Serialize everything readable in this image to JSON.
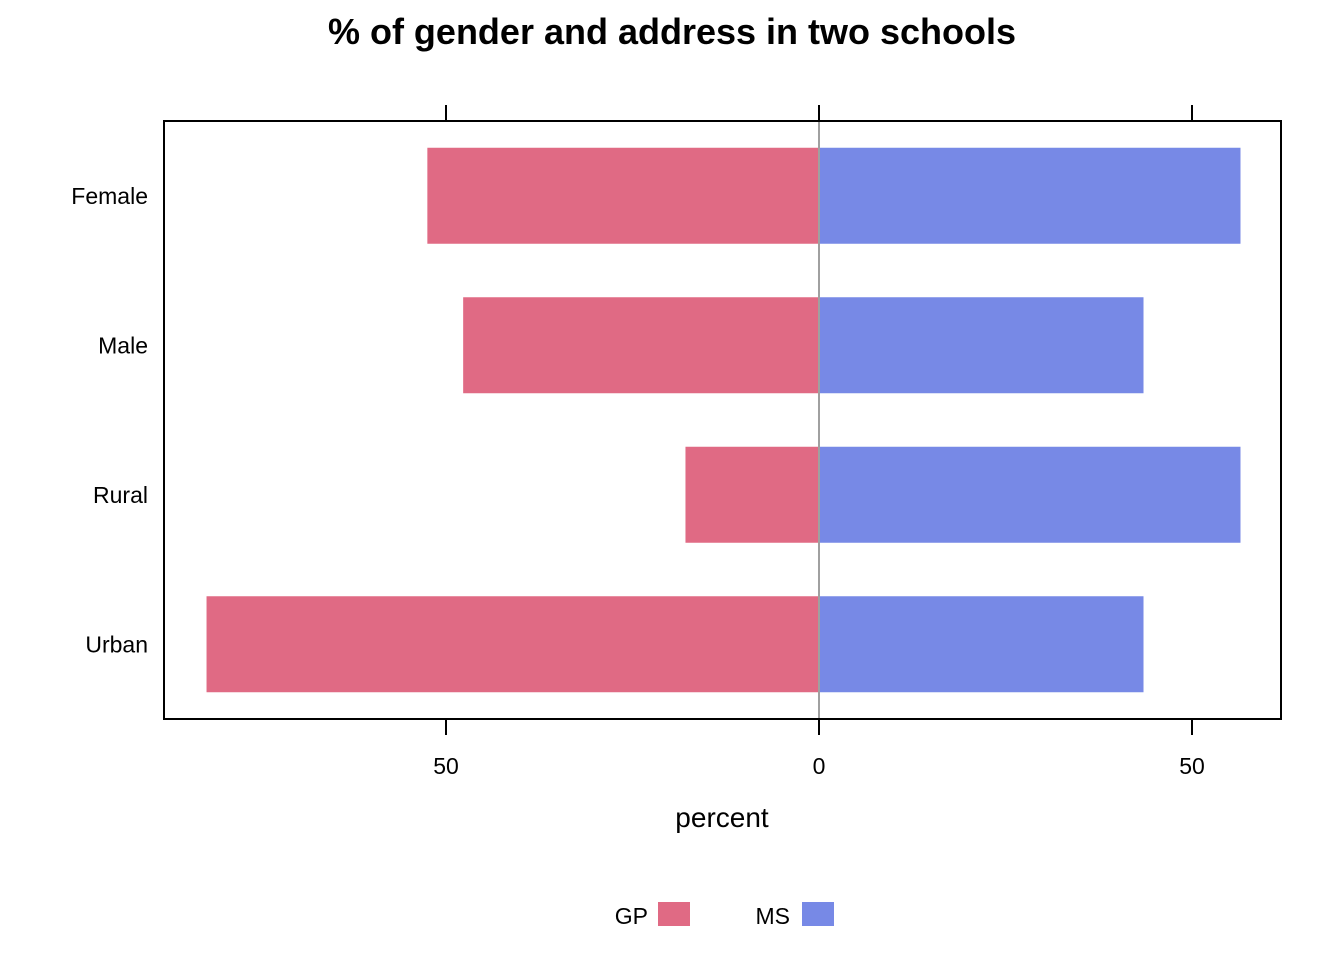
{
  "chart_data": {
    "type": "bar",
    "orientation": "horizontal",
    "diverging": true,
    "title": "% of gender and address in two schools",
    "xlabel": "percent",
    "ylabel": "",
    "xlim": [
      -82.5,
      62.5
    ],
    "xticks": [
      -50,
      0,
      50
    ],
    "xtick_labels": [
      "50",
      "0",
      "50"
    ],
    "categories": [
      "Female",
      "Male",
      "Rural",
      "Urban"
    ],
    "series": [
      {
        "name": "GP",
        "color": "#E06A84",
        "values": [
          -52.5,
          -47.7,
          -17.9,
          -82.1
        ]
      },
      {
        "name": "MS",
        "color": "#7789E6",
        "values": [
          56.5,
          43.5,
          56.5,
          43.5
        ]
      }
    ],
    "zero_line": true,
    "legend_position": "bottom",
    "grid": false
  }
}
